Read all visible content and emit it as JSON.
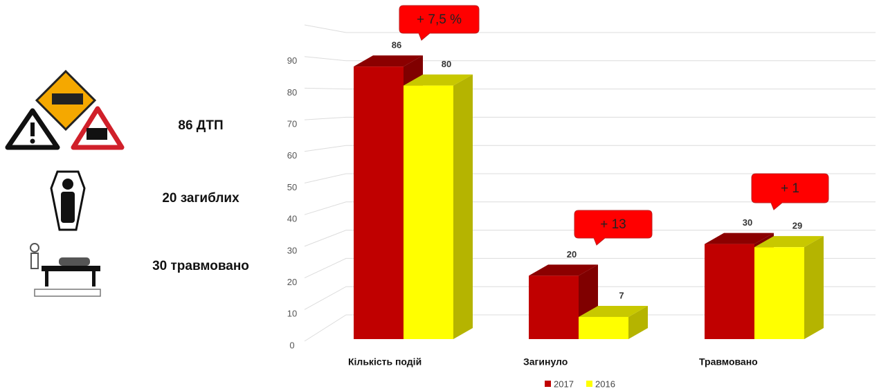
{
  "chart_data": {
    "type": "bar3d",
    "categories": [
      "Кількість подій",
      "Загинуло",
      "Травмовано"
    ],
    "series": [
      {
        "name": "2017",
        "color": "#c00000",
        "values": [
          86,
          20,
          30
        ]
      },
      {
        "name": "2016",
        "color": "#ffff00",
        "values": [
          80,
          7,
          29
        ]
      }
    ],
    "ylim": [
      0,
      100
    ],
    "yticks": [
      0,
      10,
      20,
      30,
      40,
      50,
      60,
      70,
      80,
      90
    ],
    "grid": true,
    "annotations": [
      "+ 7,5 %",
      "+ 13",
      "+ 1"
    ],
    "legend": "bottom"
  },
  "side_labels": [
    "86 ДТП",
    "20 загиблих",
    "30 травмовано"
  ]
}
